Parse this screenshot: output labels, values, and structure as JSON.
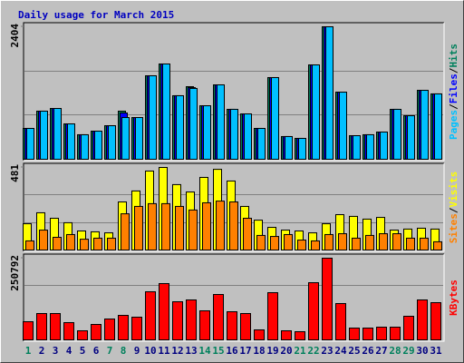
{
  "chart_data": [
    {
      "type": "bar",
      "title": "Daily usage for March 2015",
      "title_color": "#0000c0",
      "ylim": [
        0,
        2404
      ],
      "yticks": [
        2404
      ],
      "gridlines": [
        801.3,
        1602.7
      ],
      "legend_separator": "/",
      "series": [
        {
          "name": "Hits",
          "color": "#00805c",
          "values": [
            560,
            873,
            922,
            642,
            445,
            510,
            609,
            873,
            757,
            1515,
            1729,
            1153,
            1317,
            971,
            1350,
            906,
            823,
            560,
            1482,
            412,
            379,
            1712,
            2404,
            1218,
            428,
            445,
            494,
            906,
            790,
            1251,
            1186
          ]
        },
        {
          "name": "Files",
          "color": "#0000ff",
          "values": [
            560,
            873,
            922,
            642,
            445,
            510,
            609,
            840,
            757,
            1515,
            1729,
            1153,
            1300,
            971,
            1350,
            906,
            823,
            560,
            1482,
            412,
            379,
            1712,
            2404,
            1218,
            428,
            445,
            494,
            906,
            790,
            1251,
            1186
          ]
        },
        {
          "name": "Pages",
          "color": "#00c0ff",
          "values": [
            560,
            873,
            922,
            642,
            445,
            510,
            609,
            757,
            757,
            1515,
            1729,
            1153,
            1285,
            971,
            1350,
            906,
            823,
            560,
            1482,
            412,
            379,
            1712,
            2404,
            1218,
            428,
            445,
            494,
            906,
            790,
            1251,
            1186
          ]
        }
      ]
    },
    {
      "type": "bar",
      "ylim": [
        0,
        481
      ],
      "yticks": [
        481
      ],
      "gridlines": [
        160.3,
        320.7
      ],
      "legend_separator": "/",
      "series": [
        {
          "name": "Visits",
          "color": "#ffff00",
          "values": [
            153,
            217,
            185,
            159,
            111,
            106,
            100,
            280,
            344,
            460,
            481,
            381,
            338,
            423,
            470,
            402,
            254,
            174,
            132,
            116,
            111,
            100,
            153,
            206,
            196,
            180,
            190,
            116,
            122,
            127,
            122
          ]
        },
        {
          "name": "Sites",
          "color": "#ff8000",
          "values": [
            53,
            116,
            74,
            90,
            63,
            69,
            69,
            211,
            254,
            270,
            270,
            254,
            233,
            275,
            285,
            280,
            185,
            85,
            79,
            90,
            58,
            53,
            90,
            95,
            69,
            85,
            95,
            95,
            69,
            69,
            48
          ]
        }
      ]
    },
    {
      "type": "bar",
      "ylim": [
        0,
        250792
      ],
      "yticks": [
        250792
      ],
      "gridlines": [
        167195
      ],
      "categories": [
        "1",
        "2",
        "3",
        "4",
        "5",
        "6",
        "7",
        "8",
        "9",
        "10",
        "11",
        "12",
        "13",
        "14",
        "15",
        "16",
        "17",
        "18",
        "19",
        "20",
        "21",
        "22",
        "23",
        "24",
        "25",
        "26",
        "27",
        "28",
        "29",
        "30",
        "31"
      ],
      "category_colors": [
        "#00805c",
        "#000080",
        "#000080",
        "#000080",
        "#000080",
        "#000080",
        "#00805c",
        "#00805c",
        "#000080",
        "#000080",
        "#000080",
        "#000080",
        "#000080",
        "#00805c",
        "#00805c",
        "#000080",
        "#000080",
        "#000080",
        "#000080",
        "#000080",
        "#00805c",
        "#00805c",
        "#000080",
        "#000080",
        "#000080",
        "#000080",
        "#000080",
        "#00805c",
        "#00805c",
        "#000080",
        "#000080"
      ],
      "series": [
        {
          "name": "KBytes",
          "color": "#ff0000",
          "values": [
            55732,
            80810,
            80810,
            52945,
            27866,
            47372,
            64091,
            75237,
            69664,
            147688,
            172767,
            117035,
            122609,
            89168,
            139329,
            86382,
            80810,
            30653,
            144902,
            27866,
            25080,
            175554,
            250792,
            111462,
            36226,
            36226,
            39012,
            39012,
            72451,
            122609,
            114249
          ]
        }
      ]
    }
  ]
}
